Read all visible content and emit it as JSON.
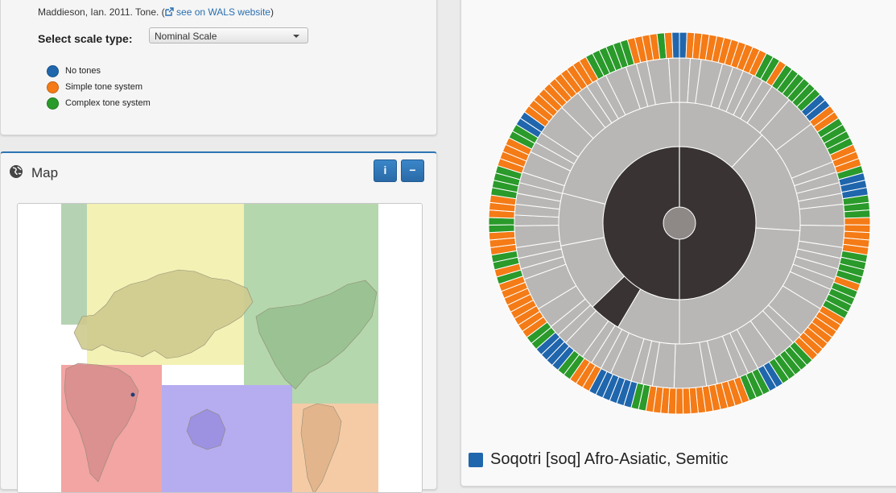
{
  "header": {
    "citation_prefix": "Maddieson, Ian. 2011. Tone. (",
    "wals_link": "see on WALS website",
    "citation_suffix": ")"
  },
  "scale": {
    "label": "Select scale type:",
    "selected": "Nominal Scale"
  },
  "legend": [
    {
      "label": "No tones",
      "color": "#1f66ad"
    },
    {
      "label": "Simple tone system",
      "color": "#f47b16"
    },
    {
      "label": "Complex tone system",
      "color": "#2a9a2a"
    }
  ],
  "map_panel": {
    "title": "Map",
    "info_label": "i",
    "collapse_label": "−",
    "icon": "globe-icon"
  },
  "sunburst": {
    "outer_ring_colors": [
      "blue",
      "orange",
      "orange",
      "orange",
      "orange",
      "orange",
      "orange",
      "orange",
      "orange",
      "orange",
      "orange",
      "orange",
      "green",
      "green",
      "orange",
      "green",
      "green",
      "green",
      "green",
      "green",
      "green",
      "blue",
      "blue",
      "orange",
      "orange",
      "green",
      "green",
      "green",
      "green",
      "orange",
      "orange",
      "orange",
      "green",
      "blue",
      "blue",
      "blue",
      "green",
      "green",
      "green",
      "orange",
      "orange",
      "orange",
      "orange",
      "orange",
      "green",
      "green",
      "green",
      "green",
      "orange",
      "green",
      "green",
      "green",
      "green",
      "orange",
      "orange",
      "orange",
      "orange",
      "orange",
      "orange",
      "orange",
      "green",
      "green",
      "green",
      "green",
      "green",
      "blue",
      "blue",
      "green",
      "green",
      "green",
      "orange",
      "orange",
      "orange",
      "orange",
      "orange",
      "orange",
      "orange",
      "orange",
      "orange",
      "orange",
      "orange",
      "orange",
      "orange",
      "orange",
      "green",
      "green",
      "blue",
      "blue",
      "blue",
      "blue",
      "blue",
      "blue",
      "orange",
      "orange",
      "orange",
      "green",
      "green",
      "blue",
      "blue",
      "blue",
      "blue",
      "green",
      "green",
      "orange",
      "orange",
      "orange",
      "orange",
      "orange",
      "orange",
      "orange",
      "orange",
      "green",
      "orange",
      "green",
      "green",
      "orange",
      "orange",
      "orange",
      "green",
      "green",
      "orange",
      "orange",
      "orange",
      "green",
      "green",
      "green",
      "green",
      "orange",
      "orange",
      "orange",
      "orange",
      "green",
      "green",
      "blue",
      "blue",
      "orange",
      "orange",
      "orange",
      "orange",
      "orange",
      "orange",
      "orange",
      "orange",
      "orange",
      "orange",
      "orange",
      "green",
      "green",
      "green",
      "green",
      "green",
      "green",
      "orange",
      "orange",
      "orange",
      "orange",
      "green",
      "orange",
      "blue"
    ],
    "colors": {
      "blue": "#1f66ad",
      "orange": "#f47b16",
      "green": "#2a9a2a",
      "gray": "#b9b7b5",
      "dark": "#393433",
      "center": "#8e8887"
    }
  },
  "selection": {
    "swatch_color": "#1f66ad",
    "text": "Soqotri [soq] Afro-Asiatic, Semitic"
  }
}
